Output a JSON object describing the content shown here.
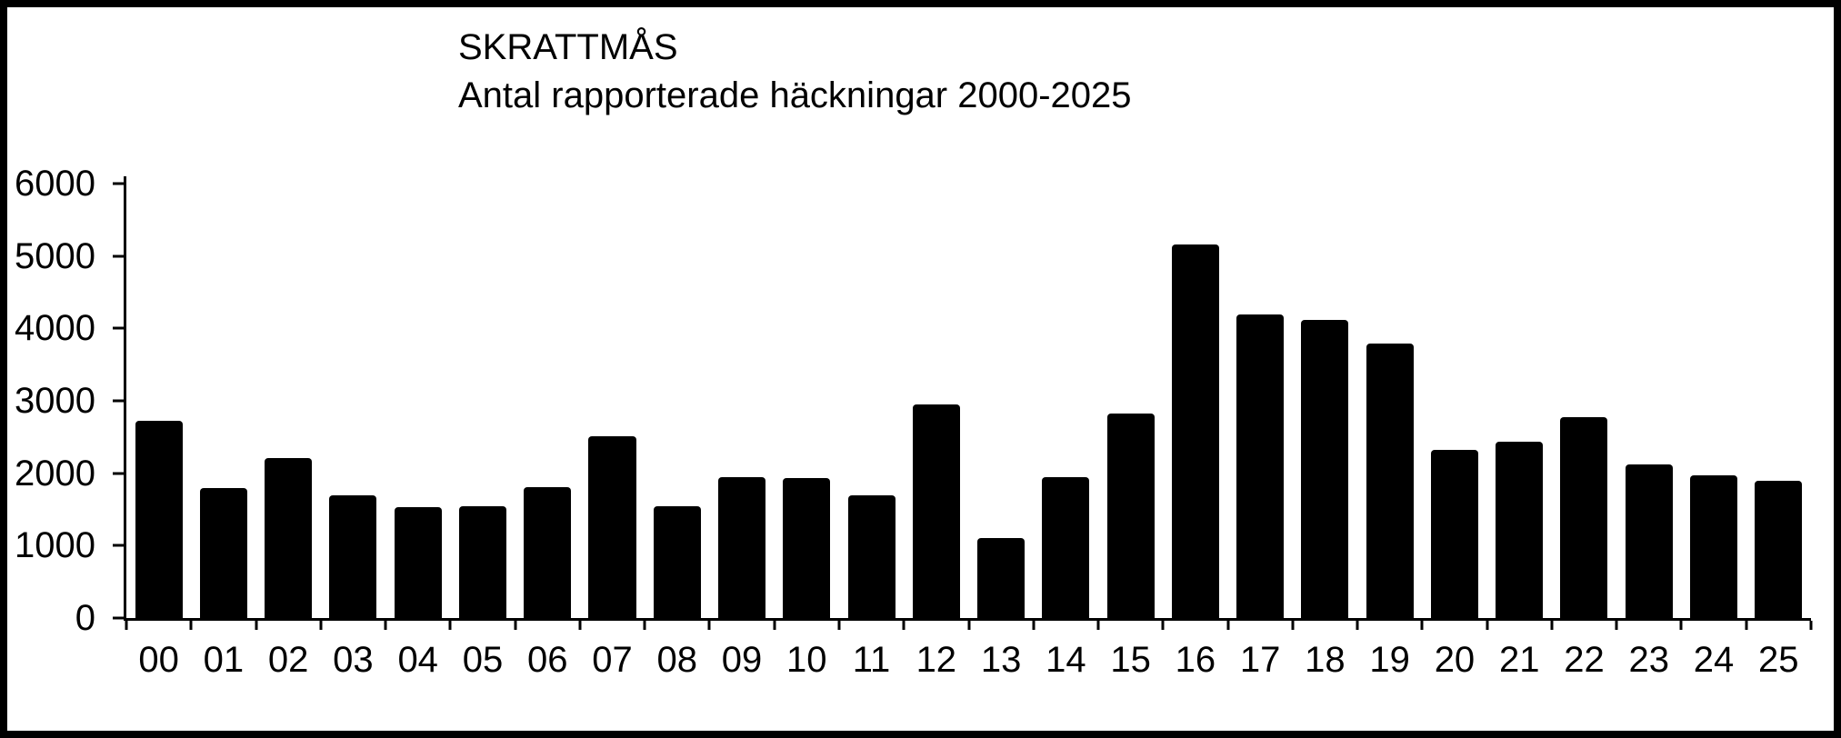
{
  "chart_data": {
    "type": "bar",
    "title": "SKRATTMÅS",
    "subtitle": "Antal rapporterade häckningar 2000-2025",
    "categories": [
      "00",
      "01",
      "02",
      "03",
      "04",
      "05",
      "06",
      "07",
      "08",
      "09",
      "10",
      "11",
      "12",
      "13",
      "14",
      "15",
      "16",
      "17",
      "18",
      "19",
      "20",
      "21",
      "22",
      "23",
      "24",
      "25"
    ],
    "values": [
      2730,
      1790,
      2210,
      1700,
      1530,
      1540,
      1810,
      2510,
      1540,
      1950,
      1930,
      1700,
      2950,
      1100,
      1950,
      2830,
      5160,
      4190,
      4120,
      3790,
      2320,
      2430,
      2780,
      2120,
      1970,
      1900
    ],
    "xlabel": "",
    "ylabel": "",
    "ylim": [
      0,
      6000
    ],
    "yticks": [
      6000,
      5000,
      4000,
      3000,
      2000,
      1000,
      0
    ],
    "grid": false,
    "legend": "none",
    "bar_color": "#000000",
    "axis_color": "#000000",
    "background_color": "#ffffff",
    "frame_color": "#000000"
  }
}
